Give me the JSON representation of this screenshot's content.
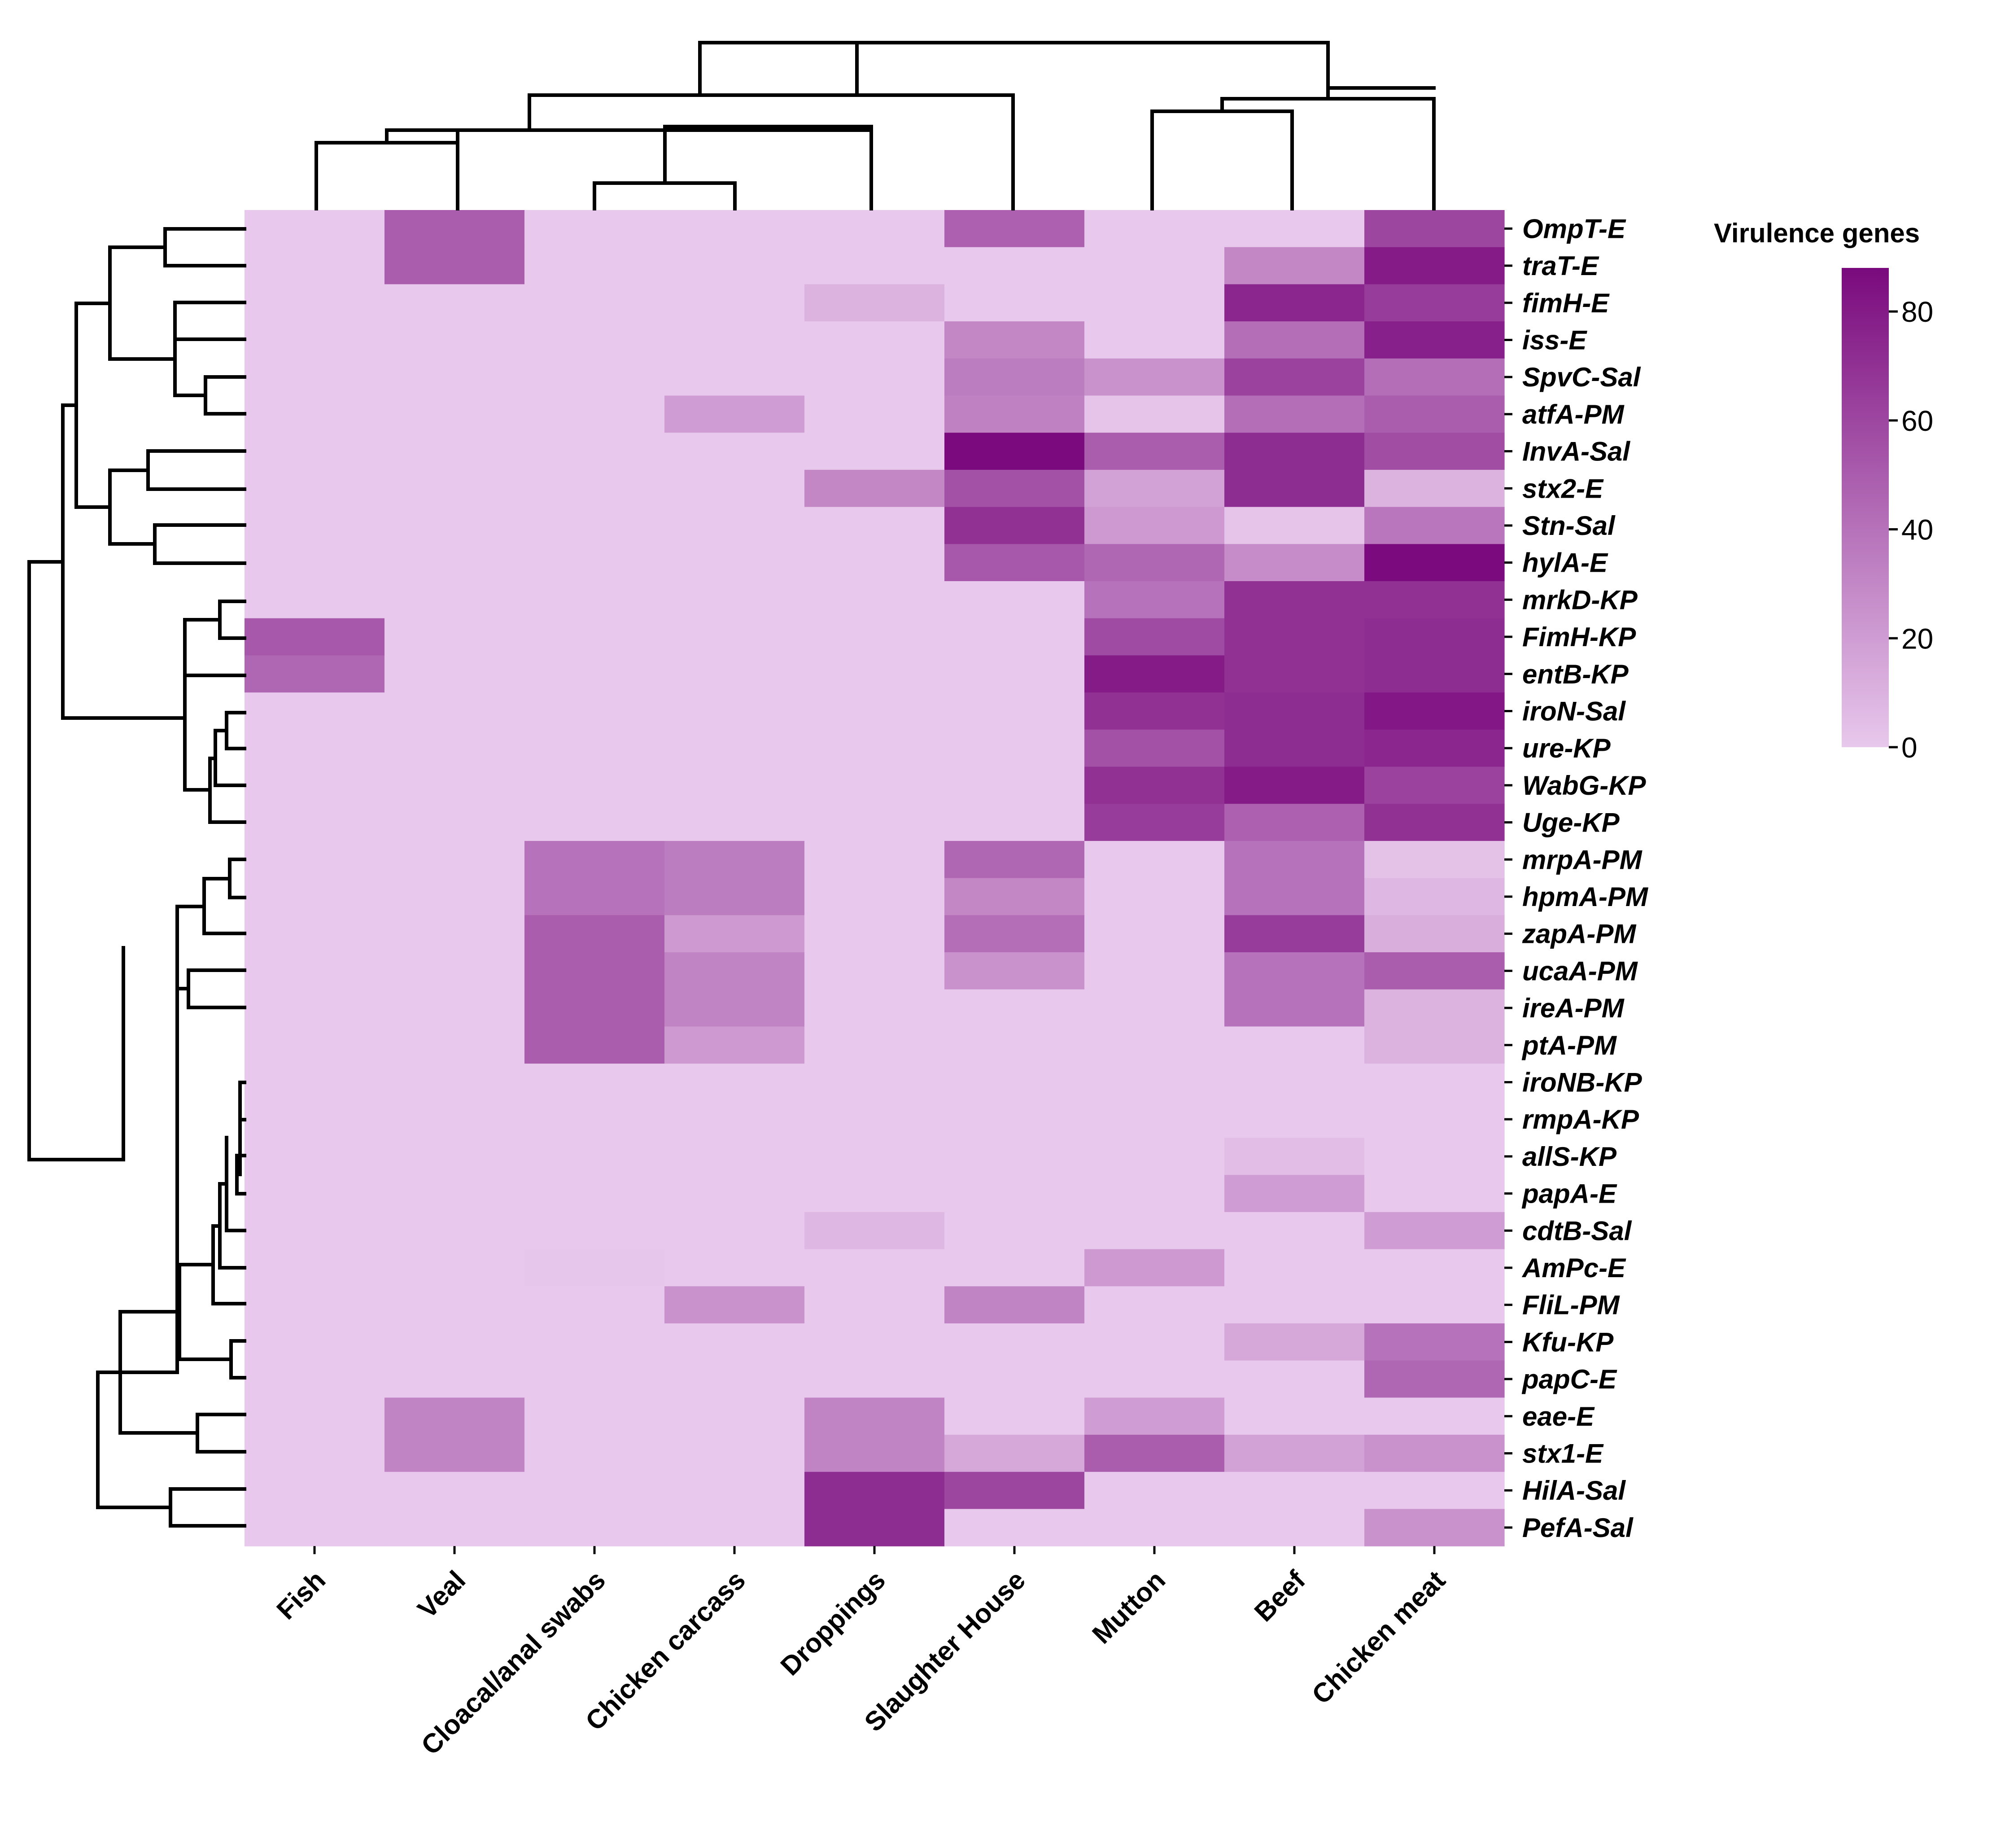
{
  "chart_data": {
    "type": "heatmap",
    "title": "",
    "colorbar_title": "Virulence genes",
    "colorbar_ticks": [
      "0",
      "20",
      "40",
      "60",
      "80"
    ],
    "value_range": [
      0,
      88
    ],
    "color_low": "#e8c8ec",
    "color_high": "#7a0a7d",
    "columns": [
      "Fish",
      "Veal",
      "Cloacal/anal swabs",
      "Chicken carcass",
      "Droppings",
      "Slaughter House",
      "Mutton",
      "Beef",
      "Chicken meat"
    ],
    "rows": [
      "OmpT-E",
      "traT-E",
      "fimH-E",
      "iss-E",
      "SpvC-Sal",
      "atfA-PM",
      "InvA-Sal",
      "stx2-E",
      "Stn-Sal",
      "hylA-E",
      "mrkD-KP",
      "FimH-KP",
      "entB-KP",
      "iroN-Sal",
      "ure-KP",
      "WabG-KP",
      "Uge-KP",
      "mrpA-PM",
      "hpmA-PM",
      "zapA-PM",
      "ucaA-PM",
      "ireA-PM",
      "ptA-PM",
      "iroNB-KP",
      "rmpA-KP",
      "allS-KP",
      "papA-E",
      "cdtB-Sal",
      "AmPc-E",
      "FliL-PM",
      "Kfu-KP",
      "papC-E",
      "eae-E",
      "stx1-E",
      "HilA-Sal",
      "PefA-Sal"
    ],
    "values": [
      [
        0,
        50,
        0,
        0,
        0,
        48,
        0,
        0,
        60
      ],
      [
        0,
        50,
        0,
        0,
        0,
        0,
        0,
        30,
        80
      ],
      [
        0,
        0,
        0,
        0,
        10,
        0,
        0,
        75,
        65
      ],
      [
        0,
        0,
        0,
        0,
        0,
        30,
        0,
        42,
        78
      ],
      [
        0,
        0,
        0,
        0,
        0,
        35,
        25,
        62,
        42
      ],
      [
        0,
        0,
        0,
        20,
        0,
        33,
        2,
        42,
        50
      ],
      [
        0,
        0,
        0,
        0,
        0,
        88,
        50,
        72,
        57
      ],
      [
        0,
        0,
        0,
        0,
        30,
        55,
        18,
        72,
        10
      ],
      [
        0,
        0,
        0,
        0,
        0,
        70,
        22,
        2,
        38
      ],
      [
        0,
        0,
        0,
        0,
        0,
        52,
        45,
        28,
        88
      ],
      [
        0,
        0,
        0,
        0,
        0,
        0,
        40,
        70,
        70
      ],
      [
        52,
        0,
        0,
        0,
        0,
        0,
        58,
        70,
        72
      ],
      [
        45,
        0,
        0,
        0,
        0,
        0,
        80,
        70,
        72
      ],
      [
        0,
        0,
        0,
        0,
        0,
        0,
        70,
        72,
        82
      ],
      [
        0,
        0,
        0,
        0,
        0,
        0,
        55,
        72,
        75
      ],
      [
        0,
        0,
        0,
        0,
        0,
        0,
        70,
        80,
        62
      ],
      [
        0,
        0,
        0,
        0,
        0,
        0,
        65,
        48,
        70
      ],
      [
        0,
        0,
        40,
        35,
        0,
        45,
        0,
        40,
        3
      ],
      [
        0,
        0,
        40,
        35,
        0,
        30,
        0,
        40,
        8
      ],
      [
        0,
        0,
        50,
        22,
        0,
        42,
        0,
        65,
        12
      ],
      [
        0,
        0,
        50,
        32,
        0,
        25,
        0,
        40,
        50
      ],
      [
        0,
        0,
        50,
        32,
        0,
        0,
        0,
        40,
        10
      ],
      [
        0,
        0,
        50,
        22,
        0,
        0,
        0,
        0,
        10
      ],
      [
        0,
        0,
        0,
        0,
        0,
        0,
        0,
        0,
        0
      ],
      [
        0,
        0,
        0,
        0,
        0,
        0,
        0,
        0,
        0
      ],
      [
        0,
        0,
        0,
        0,
        0,
        0,
        0,
        5,
        0
      ],
      [
        0,
        0,
        0,
        0,
        0,
        0,
        0,
        20,
        0
      ],
      [
        0,
        0,
        0,
        0,
        8,
        0,
        0,
        0,
        20
      ],
      [
        0,
        0,
        1,
        0,
        0,
        0,
        22,
        0,
        0
      ],
      [
        0,
        0,
        0,
        25,
        0,
        32,
        0,
        0,
        0
      ],
      [
        0,
        0,
        0,
        0,
        0,
        0,
        0,
        15,
        40
      ],
      [
        0,
        0,
        0,
        0,
        0,
        0,
        0,
        0,
        45
      ],
      [
        0,
        32,
        0,
        0,
        32,
        0,
        20,
        0,
        0
      ],
      [
        0,
        32,
        0,
        0,
        32,
        15,
        50,
        18,
        25
      ],
      [
        0,
        0,
        0,
        0,
        72,
        60,
        0,
        0,
        0
      ],
      [
        0,
        0,
        0,
        0,
        72,
        0,
        0,
        0,
        25
      ]
    ],
    "xlabel": "",
    "ylabel": "",
    "row_dendrogram": "hierarchical clustering tree on left",
    "col_dendrogram": "hierarchical clustering tree on top"
  }
}
